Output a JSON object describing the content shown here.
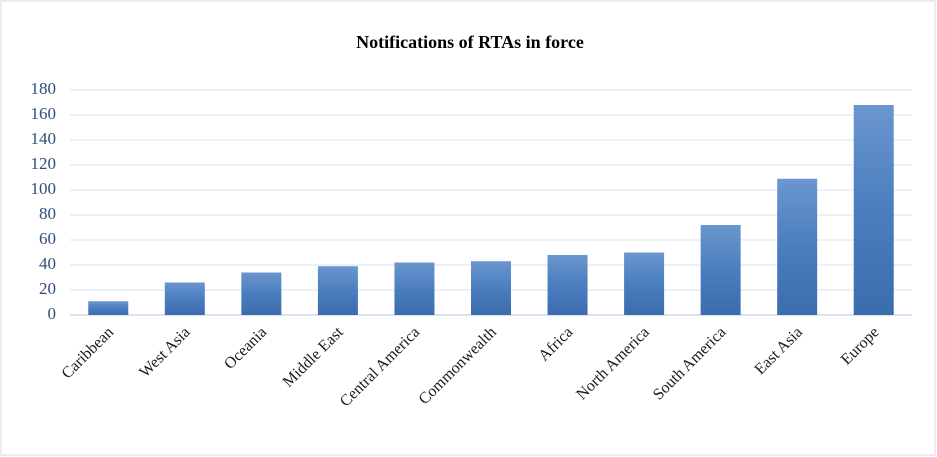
{
  "chart_data": {
    "type": "bar",
    "title": "Notifications of RTAs in force",
    "categories": [
      "Caribbean",
      "West Asia",
      "Oceania",
      "Middle East",
      "Central America",
      "Commonwealth",
      "Africa",
      "North America",
      "South America",
      "East Asia",
      "Europe"
    ],
    "values": [
      11,
      26,
      34,
      39,
      42,
      43,
      48,
      50,
      72,
      109,
      168
    ],
    "color": "#4a7ebf",
    "ylim": [
      0,
      180
    ],
    "yticks": [
      0,
      20,
      40,
      60,
      80,
      100,
      120,
      140,
      160,
      180
    ],
    "grid": true
  }
}
